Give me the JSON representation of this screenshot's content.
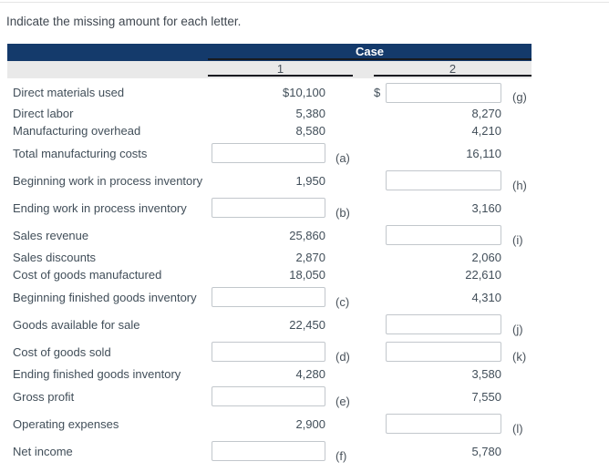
{
  "page": {
    "instruction": "Indicate the missing amount for each letter."
  },
  "table": {
    "header": {
      "group_label": "Case",
      "columns": [
        "1",
        "2"
      ]
    },
    "rows": [
      {
        "label": "Direct materials used",
        "col1": {
          "kind": "value",
          "text": "$10,100"
        },
        "col2": {
          "kind": "input",
          "letter": "(g)",
          "dollar": "$"
        }
      },
      {
        "label": "Direct labor",
        "col1": {
          "kind": "value",
          "text": "5,380"
        },
        "col2": {
          "kind": "value",
          "text": "8,270"
        }
      },
      {
        "label": "Manufacturing overhead",
        "col1": {
          "kind": "value",
          "text": "8,580"
        },
        "col2": {
          "kind": "value",
          "text": "4,210"
        }
      },
      {
        "label": "Total manufacturing costs",
        "col1": {
          "kind": "input",
          "letter": "(a)"
        },
        "col2": {
          "kind": "value",
          "text": "16,110"
        }
      },
      {
        "label": "Beginning work in process inventory",
        "col1": {
          "kind": "value",
          "text": "1,950"
        },
        "col2": {
          "kind": "input",
          "letter": "(h)"
        }
      },
      {
        "label": "Ending work in process inventory",
        "col1": {
          "kind": "input",
          "letter": "(b)"
        },
        "col2": {
          "kind": "value",
          "text": "3,160"
        }
      },
      {
        "label": "Sales revenue",
        "col1": {
          "kind": "value",
          "text": "25,860"
        },
        "col2": {
          "kind": "input",
          "letter": "(i)"
        }
      },
      {
        "label": "Sales discounts",
        "col1": {
          "kind": "value",
          "text": "2,870"
        },
        "col2": {
          "kind": "value",
          "text": "2,060"
        }
      },
      {
        "label": "Cost of goods manufactured",
        "col1": {
          "kind": "value",
          "text": "18,050"
        },
        "col2": {
          "kind": "value",
          "text": "22,610"
        }
      },
      {
        "label": "Beginning finished goods inventory",
        "col1": {
          "kind": "input",
          "letter": "(c)"
        },
        "col2": {
          "kind": "value",
          "text": "4,310"
        }
      },
      {
        "label": "Goods available for sale",
        "col1": {
          "kind": "value",
          "text": "22,450"
        },
        "col2": {
          "kind": "input",
          "letter": "(j)"
        }
      },
      {
        "label": "Cost of goods sold",
        "col1": {
          "kind": "input",
          "letter": "(d)"
        },
        "col2": {
          "kind": "input",
          "letter": "(k)"
        }
      },
      {
        "label": "Ending finished goods inventory",
        "col1": {
          "kind": "value",
          "text": "4,280"
        },
        "col2": {
          "kind": "value",
          "text": "3,580"
        }
      },
      {
        "label": "Gross profit",
        "col1": {
          "kind": "input",
          "letter": "(e)"
        },
        "col2": {
          "kind": "value",
          "text": "7,550"
        }
      },
      {
        "label": "Operating expenses",
        "col1": {
          "kind": "value",
          "text": "2,900"
        },
        "col2": {
          "kind": "input",
          "letter": "(l)"
        }
      },
      {
        "label": "Net income",
        "col1": {
          "kind": "input",
          "letter": "(f)"
        },
        "col2": {
          "kind": "value",
          "text": "5,780"
        }
      }
    ],
    "input_values": {
      "a": "",
      "b": "",
      "c": "",
      "d": "",
      "e": "",
      "f": "",
      "g": "",
      "h": "",
      "i": "",
      "j": "",
      "k": "",
      "l": ""
    }
  },
  "colors": {
    "header_navy": "#143a6b",
    "header_text": "#ffffff",
    "column_band_gray": "#e9e9e9",
    "rule_dark": "#171a20",
    "body_text": "#414e59",
    "input_border": "#c2c7cc"
  }
}
